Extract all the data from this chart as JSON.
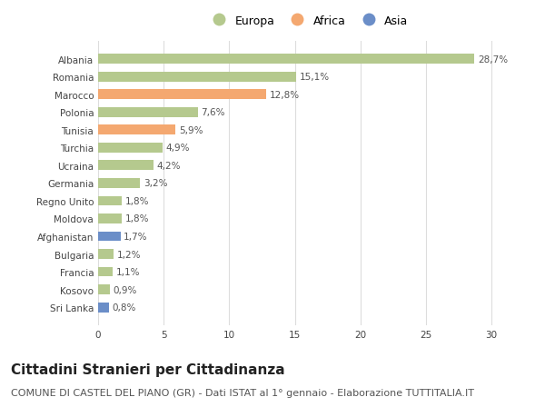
{
  "countries": [
    "Albania",
    "Romania",
    "Marocco",
    "Polonia",
    "Tunisia",
    "Turchia",
    "Ucraina",
    "Germania",
    "Regno Unito",
    "Moldova",
    "Afghanistan",
    "Bulgaria",
    "Francia",
    "Kosovo",
    "Sri Lanka"
  ],
  "values": [
    28.7,
    15.1,
    12.8,
    7.6,
    5.9,
    4.9,
    4.2,
    3.2,
    1.8,
    1.8,
    1.7,
    1.2,
    1.1,
    0.9,
    0.8
  ],
  "labels": [
    "28,7%",
    "15,1%",
    "12,8%",
    "7,6%",
    "5,9%",
    "4,9%",
    "4,2%",
    "3,2%",
    "1,8%",
    "1,8%",
    "1,7%",
    "1,2%",
    "1,1%",
    "0,9%",
    "0,8%"
  ],
  "colors": [
    "#b5c98e",
    "#b5c98e",
    "#f4a870",
    "#b5c98e",
    "#f4a870",
    "#b5c98e",
    "#b5c98e",
    "#b5c98e",
    "#b5c98e",
    "#b5c98e",
    "#6b8ec8",
    "#b5c98e",
    "#b5c98e",
    "#b5c98e",
    "#6b8ec8"
  ],
  "legend_labels": [
    "Europa",
    "Africa",
    "Asia"
  ],
  "legend_colors": [
    "#b5c98e",
    "#f4a870",
    "#6b8ec8"
  ],
  "xlim": [
    0,
    32
  ],
  "xticks": [
    0,
    5,
    10,
    15,
    20,
    25,
    30
  ],
  "title": "Cittadini Stranieri per Cittadinanza",
  "subtitle": "COMUNE DI CASTEL DEL PIANO (GR) - Dati ISTAT al 1° gennaio - Elaborazione TUTTITALIA.IT",
  "title_fontsize": 11,
  "subtitle_fontsize": 8,
  "label_fontsize": 7.5,
  "tick_fontsize": 7.5,
  "legend_fontsize": 9,
  "background_color": "#ffffff",
  "bar_height": 0.55,
  "grid_color": "#dddddd"
}
